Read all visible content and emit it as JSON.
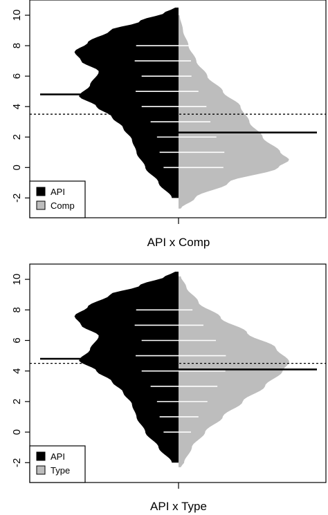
{
  "chart_data": [
    {
      "type": "beanplot",
      "xlabel": "API x Comp",
      "ylim": [
        -3.3,
        11
      ],
      "yticks": [
        -2,
        0,
        2,
        4,
        6,
        8,
        10
      ],
      "ytick_labels": [
        "-2",
        "0",
        "2",
        "4",
        "6",
        "8",
        "10"
      ],
      "overall_mean": 3.5,
      "legend_position": "bottom-left",
      "colors": {
        "left": "#000000",
        "right": "#bdbdbd",
        "left_lines": "#ffffff",
        "right_lines": "#ffffff"
      },
      "series": [
        {
          "name": "API",
          "color": "#000000",
          "mean": 4.8,
          "density": [
            [
              -2,
              0.06
            ],
            [
              -1,
              0.18
            ],
            [
              0,
              0.3
            ],
            [
              1,
              0.38
            ],
            [
              1.8,
              0.42
            ],
            [
              2.6,
              0.5
            ],
            [
              3.3,
              0.6
            ],
            [
              4,
              0.74
            ],
            [
              4.7,
              0.9
            ],
            [
              5.4,
              0.8
            ],
            [
              6.3,
              0.72
            ],
            [
              7,
              0.88
            ],
            [
              7.6,
              0.94
            ],
            [
              8.2,
              0.82
            ],
            [
              9,
              0.62
            ],
            [
              9.6,
              0.35
            ],
            [
              10.2,
              0.12
            ],
            [
              10.5,
              0.03
            ]
          ],
          "values": [
            0,
            1,
            2,
            3,
            4,
            5,
            6,
            7,
            8
          ]
        },
        {
          "name": "Comp",
          "color": "#bdbdbd",
          "mean": 2.3,
          "density": [
            [
              -2.7,
              0.02
            ],
            [
              -2,
              0.15
            ],
            [
              -1,
              0.45
            ],
            [
              0,
              0.9
            ],
            [
              0.5,
              1.0
            ],
            [
              1,
              0.92
            ],
            [
              2,
              0.76
            ],
            [
              3,
              0.64
            ],
            [
              4,
              0.56
            ],
            [
              5,
              0.4
            ],
            [
              6,
              0.26
            ],
            [
              7,
              0.16
            ],
            [
              8,
              0.09
            ],
            [
              9,
              0.04
            ],
            [
              10,
              0.01
            ]
          ],
          "values": [
            0,
            1,
            2,
            3,
            4,
            5,
            6,
            7,
            8
          ]
        }
      ]
    },
    {
      "type": "beanplot",
      "xlabel": "API x Type",
      "ylim": [
        -3.3,
        11
      ],
      "yticks": [
        -2,
        0,
        2,
        4,
        6,
        8,
        10
      ],
      "ytick_labels": [
        "-2",
        "0",
        "2",
        "4",
        "6",
        "8",
        "10"
      ],
      "overall_mean": 4.5,
      "legend_position": "bottom-left",
      "colors": {
        "left": "#000000",
        "right": "#bdbdbd",
        "left_lines": "#ffffff",
        "right_lines": "#ffffff"
      },
      "series": [
        {
          "name": "API",
          "color": "#000000",
          "mean": 4.8,
          "density": [
            [
              -2,
              0.06
            ],
            [
              -1,
              0.18
            ],
            [
              0,
              0.3
            ],
            [
              1,
              0.38
            ],
            [
              1.8,
              0.42
            ],
            [
              2.6,
              0.5
            ],
            [
              3.3,
              0.6
            ],
            [
              4,
              0.74
            ],
            [
              4.7,
              0.9
            ],
            [
              5.4,
              0.8
            ],
            [
              6.3,
              0.72
            ],
            [
              7,
              0.88
            ],
            [
              7.6,
              0.94
            ],
            [
              8.2,
              0.82
            ],
            [
              9,
              0.62
            ],
            [
              9.6,
              0.35
            ],
            [
              10.2,
              0.12
            ],
            [
              10.5,
              0.03
            ]
          ],
          "values": [
            0,
            1,
            2,
            3,
            4,
            5,
            6,
            7,
            8
          ]
        },
        {
          "name": "Type",
          "color": "#bdbdbd",
          "mean": 4.1,
          "density": [
            [
              -2.3,
              0.02
            ],
            [
              -2,
              0.05
            ],
            [
              -1,
              0.12
            ],
            [
              0,
              0.24
            ],
            [
              1,
              0.4
            ],
            [
              2,
              0.58
            ],
            [
              3,
              0.78
            ],
            [
              4,
              0.94
            ],
            [
              4.6,
              1.0
            ],
            [
              5.5,
              0.88
            ],
            [
              6.5,
              0.62
            ],
            [
              7.5,
              0.38
            ],
            [
              8.5,
              0.18
            ],
            [
              9.5,
              0.07
            ],
            [
              10.2,
              0.02
            ]
          ],
          "values": [
            0,
            1,
            2,
            3,
            4,
            5,
            6,
            7,
            8
          ]
        }
      ]
    }
  ]
}
